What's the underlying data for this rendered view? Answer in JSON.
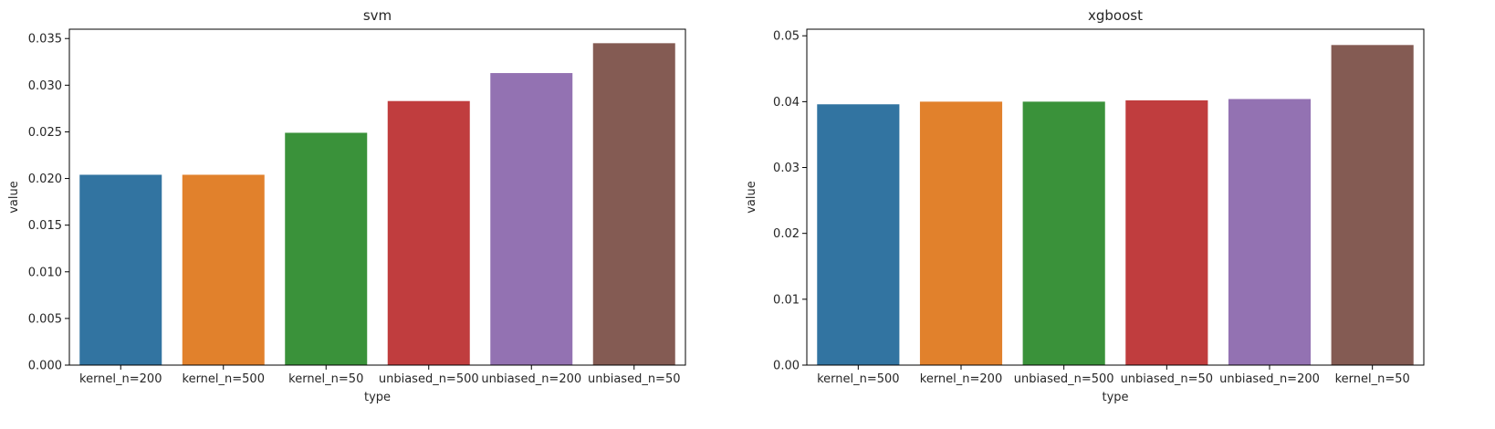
{
  "chart_data": [
    {
      "type": "bar",
      "title": "svm",
      "xlabel": "type",
      "ylabel": "value",
      "categories": [
        "kernel_n=200",
        "kernel_n=500",
        "kernel_n=50",
        "unbiased_n=500",
        "unbiased_n=200",
        "unbiased_n=50"
      ],
      "values": [
        0.0204,
        0.0204,
        0.0249,
        0.0283,
        0.0313,
        0.0345
      ],
      "colors": [
        "#3274a1",
        "#e1812c",
        "#3a923a",
        "#c03d3e",
        "#9372b2",
        "#845b53"
      ],
      "ylim": [
        0,
        0.036
      ],
      "yticks": [
        0.0,
        0.005,
        0.01,
        0.015,
        0.02,
        0.025,
        0.03,
        0.035
      ],
      "ytick_labels": [
        "0.000",
        "0.005",
        "0.010",
        "0.015",
        "0.020",
        "0.025",
        "0.030",
        "0.035"
      ],
      "grid": false,
      "legend": "none"
    },
    {
      "type": "bar",
      "title": "xgboost",
      "xlabel": "type",
      "ylabel": "value",
      "categories": [
        "kernel_n=500",
        "kernel_n=200",
        "unbiased_n=500",
        "unbiased_n=50",
        "unbiased_n=200",
        "kernel_n=50"
      ],
      "values": [
        0.0396,
        0.04,
        0.04,
        0.0402,
        0.0404,
        0.0486
      ],
      "colors": [
        "#3274a1",
        "#e1812c",
        "#3a923a",
        "#c03d3e",
        "#9372b2",
        "#845b53"
      ],
      "ylim": [
        0,
        0.051
      ],
      "yticks": [
        0.0,
        0.01,
        0.02,
        0.03,
        0.04,
        0.05
      ],
      "ytick_labels": [
        "0.00",
        "0.01",
        "0.02",
        "0.03",
        "0.04",
        "0.05"
      ],
      "grid": false,
      "legend": "none"
    }
  ]
}
